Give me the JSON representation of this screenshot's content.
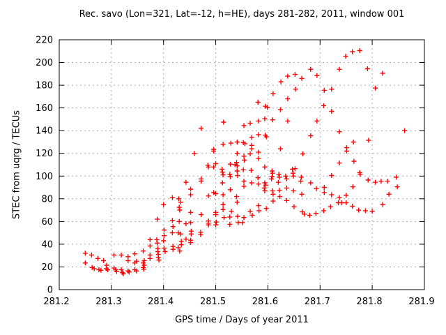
{
  "title": "Rec. savo (Lon=321, Lat=-12, h=HE), days 281-282, 2011, window 001",
  "colors": {
    "marker": "#ff0000",
    "grid": "#a8a8a8",
    "axis": "#000000",
    "background": "#ffffff",
    "text": "#000000"
  },
  "chart_data": {
    "type": "scatter",
    "title": "Rec. savo (Lon=321, Lat=-12, h=HE), days 281-282, 2011, window 001",
    "xlabel": "GPS time / Days of year 2011",
    "ylabel": "STEC from uqrg / TECUs",
    "xlim": [
      281.2,
      281.9
    ],
    "ylim": [
      0,
      220
    ],
    "xticks": [
      281.2,
      281.3,
      281.4,
      281.5,
      281.6,
      281.7,
      281.8,
      281.9
    ],
    "xtick_labels": [
      "281.2",
      "281.3",
      "281.4",
      "281.5",
      "281.6",
      "281.7",
      "281.8",
      "281.9"
    ],
    "yticks": [
      0,
      20,
      40,
      60,
      80,
      100,
      120,
      140,
      160,
      180,
      200,
      220
    ],
    "ytick_labels": [
      "0",
      "20",
      "40",
      "60",
      "80",
      "100",
      "120",
      "140",
      "160",
      "180",
      "200",
      "220"
    ],
    "grid": true,
    "legend": "none",
    "marker": "plus",
    "points": [
      [
        281.25,
        32
      ],
      [
        281.25,
        23.5
      ],
      [
        281.262,
        30.5
      ],
      [
        281.263,
        19.5
      ],
      [
        281.267,
        18.5
      ],
      [
        281.274,
        27.5
      ],
      [
        281.276,
        17.5
      ],
      [
        281.28,
        17
      ],
      [
        281.285,
        25.5
      ],
      [
        281.29,
        18.5
      ],
      [
        281.291,
        21.5
      ],
      [
        281.293,
        17.5
      ],
      [
        281.305,
        30.5
      ],
      [
        281.305,
        19
      ],
      [
        281.308,
        17.5
      ],
      [
        281.31,
        16
      ],
      [
        281.319,
        30.5
      ],
      [
        281.319,
        17.5
      ],
      [
        281.321,
        15
      ],
      [
        281.323,
        14
      ],
      [
        281.332,
        29
      ],
      [
        281.332,
        25.5
      ],
      [
        281.332,
        16.5
      ],
      [
        281.334,
        15.5
      ],
      [
        281.345,
        31.5
      ],
      [
        281.345,
        23.5
      ],
      [
        281.345,
        17.5
      ],
      [
        281.348,
        25
      ],
      [
        281.348,
        16.5
      ],
      [
        281.361,
        34
      ],
      [
        281.361,
        23.5
      ],
      [
        281.361,
        19.5
      ],
      [
        281.362,
        18
      ],
      [
        281.363,
        25.5
      ],
      [
        281.363,
        21.5
      ],
      [
        281.374,
        44
      ],
      [
        281.374,
        38.5
      ],
      [
        281.374,
        30.5
      ],
      [
        281.374,
        27.5
      ],
      [
        281.387,
        44
      ],
      [
        281.388,
        62
      ],
      [
        281.388,
        41
      ],
      [
        281.389,
        36
      ],
      [
        281.389,
        33.5
      ],
      [
        281.39,
        31
      ],
      [
        281.39,
        28.5
      ],
      [
        281.391,
        26
      ],
      [
        281.4,
        75
      ],
      [
        281.4,
        43
      ],
      [
        281.401,
        52.5
      ],
      [
        281.401,
        47.5
      ],
      [
        281.401,
        36.5
      ],
      [
        281.403,
        33.5
      ],
      [
        281.417,
        81
      ],
      [
        281.417,
        61
      ],
      [
        281.417,
        50
      ],
      [
        281.418,
        55.5
      ],
      [
        281.418,
        38
      ],
      [
        281.418,
        35.5
      ],
      [
        281.428,
        50
      ],
      [
        281.428,
        37
      ],
      [
        281.429,
        80
      ],
      [
        281.43,
        72.5
      ],
      [
        281.43,
        60
      ],
      [
        281.431,
        70
      ],
      [
        281.431,
        34
      ],
      [
        281.433,
        77
      ],
      [
        281.433,
        49
      ],
      [
        281.434,
        42.5
      ],
      [
        281.434,
        39.5
      ],
      [
        281.443,
        94.5
      ],
      [
        281.443,
        58
      ],
      [
        281.443,
        44.5
      ],
      [
        281.452,
        88.5
      ],
      [
        281.452,
        83.5
      ],
      [
        281.452,
        68
      ],
      [
        281.452,
        59
      ],
      [
        281.452,
        43.5
      ],
      [
        281.452,
        41.5
      ],
      [
        281.453,
        51.5
      ],
      [
        281.453,
        49
      ],
      [
        281.459,
        120
      ],
      [
        281.471,
        50.5
      ],
      [
        281.471,
        48.5
      ],
      [
        281.472,
        142
      ],
      [
        281.472,
        97.5
      ],
      [
        281.472,
        95.5
      ],
      [
        281.472,
        66
      ],
      [
        281.485,
        109.5
      ],
      [
        281.486,
        108
      ],
      [
        281.486,
        82.5
      ],
      [
        281.486,
        60.5
      ],
      [
        281.486,
        58.5
      ],
      [
        281.486,
        57
      ],
      [
        281.496,
        123.5
      ],
      [
        281.496,
        122
      ],
      [
        281.496,
        108
      ],
      [
        281.496,
        85.5
      ],
      [
        281.5,
        111
      ],
      [
        281.5,
        84.5
      ],
      [
        281.5,
        68
      ],
      [
        281.5,
        66
      ],
      [
        281.5,
        57
      ],
      [
        281.501,
        59.5
      ],
      [
        281.512,
        106
      ],
      [
        281.513,
        103.5
      ],
      [
        281.513,
        94
      ],
      [
        281.514,
        101
      ],
      [
        281.514,
        83.5
      ],
      [
        281.514,
        75
      ],
      [
        281.514,
        70.5
      ],
      [
        281.514,
        128
      ],
      [
        281.515,
        147.5
      ],
      [
        281.516,
        63.5
      ],
      [
        281.527,
        101.5
      ],
      [
        281.527,
        64
      ],
      [
        281.527,
        57.5
      ],
      [
        281.528,
        110.5
      ],
      [
        281.528,
        99.5
      ],
      [
        281.528,
        88
      ],
      [
        281.529,
        129
      ],
      [
        281.53,
        69
      ],
      [
        281.537,
        110
      ],
      [
        281.54,
        112
      ],
      [
        281.54,
        82
      ],
      [
        281.541,
        109
      ],
      [
        281.541,
        104.5
      ],
      [
        281.541,
        130
      ],
      [
        281.541,
        120
      ],
      [
        281.541,
        77
      ],
      [
        281.542,
        100.5
      ],
      [
        281.542,
        64.5
      ],
      [
        281.543,
        59
      ],
      [
        281.551,
        59
      ],
      [
        281.553,
        129.5
      ],
      [
        281.553,
        105.5
      ],
      [
        281.554,
        144.5
      ],
      [
        281.554,
        117.5
      ],
      [
        281.554,
        95.5
      ],
      [
        281.554,
        91
      ],
      [
        281.554,
        63.5
      ],
      [
        281.555,
        114
      ],
      [
        281.556,
        128.5
      ],
      [
        281.566,
        146.5
      ],
      [
        281.566,
        119.5
      ],
      [
        281.566,
        69
      ],
      [
        281.568,
        105
      ],
      [
        281.569,
        134
      ],
      [
        281.569,
        127
      ],
      [
        281.569,
        124
      ],
      [
        281.569,
        94
      ],
      [
        281.57,
        65.5
      ],
      [
        281.581,
        165
      ],
      [
        281.581,
        98.5
      ],
      [
        281.582,
        148.5
      ],
      [
        281.582,
        136.5
      ],
      [
        281.582,
        121
      ],
      [
        281.582,
        115.5
      ],
      [
        281.582,
        93
      ],
      [
        281.582,
        74
      ],
      [
        281.583,
        69.5
      ],
      [
        281.593,
        89.5
      ],
      [
        281.594,
        150.5
      ],
      [
        281.594,
        108
      ],
      [
        281.594,
        94
      ],
      [
        281.594,
        87
      ],
      [
        281.595,
        161.5
      ],
      [
        281.595,
        136
      ],
      [
        281.596,
        92
      ],
      [
        281.597,
        134.5
      ],
      [
        281.597,
        71.5
      ],
      [
        281.599,
        160.5
      ],
      [
        281.607,
        97.5
      ],
      [
        281.608,
        104.5
      ],
      [
        281.608,
        99.5
      ],
      [
        281.609,
        149.5
      ],
      [
        281.609,
        102.5
      ],
      [
        281.609,
        87
      ],
      [
        281.61,
        172.5
      ],
      [
        281.61,
        84
      ],
      [
        281.61,
        78
      ],
      [
        281.62,
        94.5
      ],
      [
        281.621,
        101.5
      ],
      [
        281.622,
        99
      ],
      [
        281.622,
        87.5
      ],
      [
        281.623,
        82
      ],
      [
        281.624,
        158.5
      ],
      [
        281.624,
        124
      ],
      [
        281.625,
        183
      ],
      [
        281.634,
        100
      ],
      [
        281.636,
        97.5
      ],
      [
        281.636,
        89.5
      ],
      [
        281.636,
        78.5
      ],
      [
        281.638,
        188
      ],
      [
        281.638,
        168
      ],
      [
        281.638,
        148.5
      ],
      [
        281.647,
        106
      ],
      [
        281.648,
        102.5
      ],
      [
        281.649,
        100
      ],
      [
        281.649,
        87
      ],
      [
        281.65,
        73
      ],
      [
        281.652,
        189.5
      ],
      [
        281.652,
        106.5
      ],
      [
        281.653,
        176.5
      ],
      [
        281.663,
        95.5
      ],
      [
        281.664,
        99
      ],
      [
        281.665,
        186
      ],
      [
        281.665,
        84
      ],
      [
        281.666,
        68.5
      ],
      [
        281.667,
        119.5
      ],
      [
        281.67,
        66.5
      ],
      [
        281.68,
        65.5
      ],
      [
        281.682,
        194
      ],
      [
        281.682,
        135.5
      ],
      [
        281.682,
        94
      ],
      [
        281.692,
        67
      ],
      [
        281.693,
        89
      ],
      [
        281.694,
        188.5
      ],
      [
        281.694,
        148.5
      ],
      [
        281.707,
        162
      ],
      [
        281.707,
        69.5
      ],
      [
        281.708,
        175.5
      ],
      [
        281.708,
        90
      ],
      [
        281.708,
        85.5
      ],
      [
        281.72,
        73
      ],
      [
        281.722,
        176.5
      ],
      [
        281.722,
        157
      ],
      [
        281.722,
        100.5
      ],
      [
        281.722,
        83.5
      ],
      [
        281.735,
        76.5
      ],
      [
        281.737,
        194
      ],
      [
        281.737,
        139
      ],
      [
        281.737,
        111.5
      ],
      [
        281.737,
        81
      ],
      [
        281.741,
        76.5
      ],
      [
        281.749,
        205.5
      ],
      [
        281.75,
        83
      ],
      [
        281.75,
        76.5
      ],
      [
        281.751,
        125
      ],
      [
        281.751,
        122
      ],
      [
        281.762,
        209.5
      ],
      [
        281.762,
        73.5
      ],
      [
        281.763,
        90.5
      ],
      [
        281.764,
        130
      ],
      [
        281.765,
        113
      ],
      [
        281.774,
        70
      ],
      [
        281.776,
        210.5
      ],
      [
        281.776,
        103
      ],
      [
        281.777,
        101.5
      ],
      [
        281.787,
        69.5
      ],
      [
        281.791,
        194.5
      ],
      [
        281.792,
        96.5
      ],
      [
        281.793,
        131.5
      ],
      [
        281.8,
        69
      ],
      [
        281.806,
        177.5
      ],
      [
        281.806,
        94.5
      ],
      [
        281.817,
        95.5
      ],
      [
        281.82,
        190.5
      ],
      [
        281.82,
        75
      ],
      [
        281.829,
        95.5
      ],
      [
        281.832,
        84
      ],
      [
        281.846,
        99
      ],
      [
        281.848,
        90.5
      ],
      [
        281.862,
        140
      ]
    ]
  }
}
